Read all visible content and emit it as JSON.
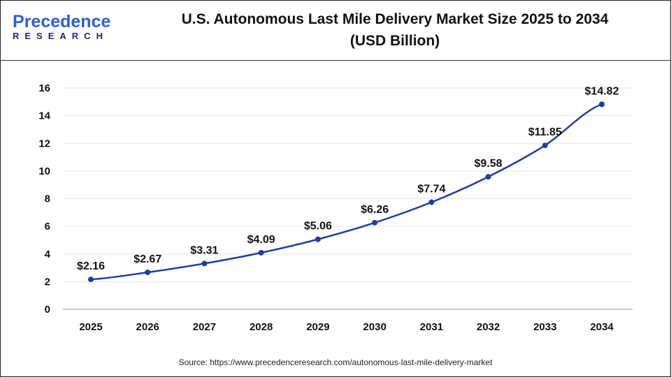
{
  "brand": {
    "logo_line1_a": "P",
    "logo_line1_b": "recedence",
    "logo_line2": "RESEARCH"
  },
  "source": "Source: https://www.precedenceresearch.com/autonomous-last-mile-delivery-market",
  "colors": {
    "line": "#1f3f9a",
    "marker": "#1f3f9a",
    "grid": "#e6e6e6"
  },
  "chart_data": {
    "type": "line",
    "title": "U.S. Autonomous Last Mile Delivery Market Size 2025 to 2034",
    "subtitle": "(USD Billion)",
    "categories": [
      "2025",
      "2026",
      "2027",
      "2028",
      "2029",
      "2030",
      "2031",
      "2032",
      "2033",
      "2034"
    ],
    "values": [
      2.16,
      2.67,
      3.31,
      4.09,
      5.06,
      6.26,
      7.74,
      9.58,
      11.85,
      14.82
    ],
    "data_labels": [
      "$2.16",
      "$2.67",
      "$3.31",
      "$4.09",
      "$5.06",
      "$6.26",
      "$7.74",
      "$9.58",
      "$11.85",
      "$14.82"
    ],
    "ylim": [
      0,
      16
    ],
    "yticks": [
      0,
      2,
      4,
      6,
      8,
      10,
      12,
      14,
      16
    ],
    "grid": true,
    "xlabel": "",
    "ylabel": ""
  }
}
